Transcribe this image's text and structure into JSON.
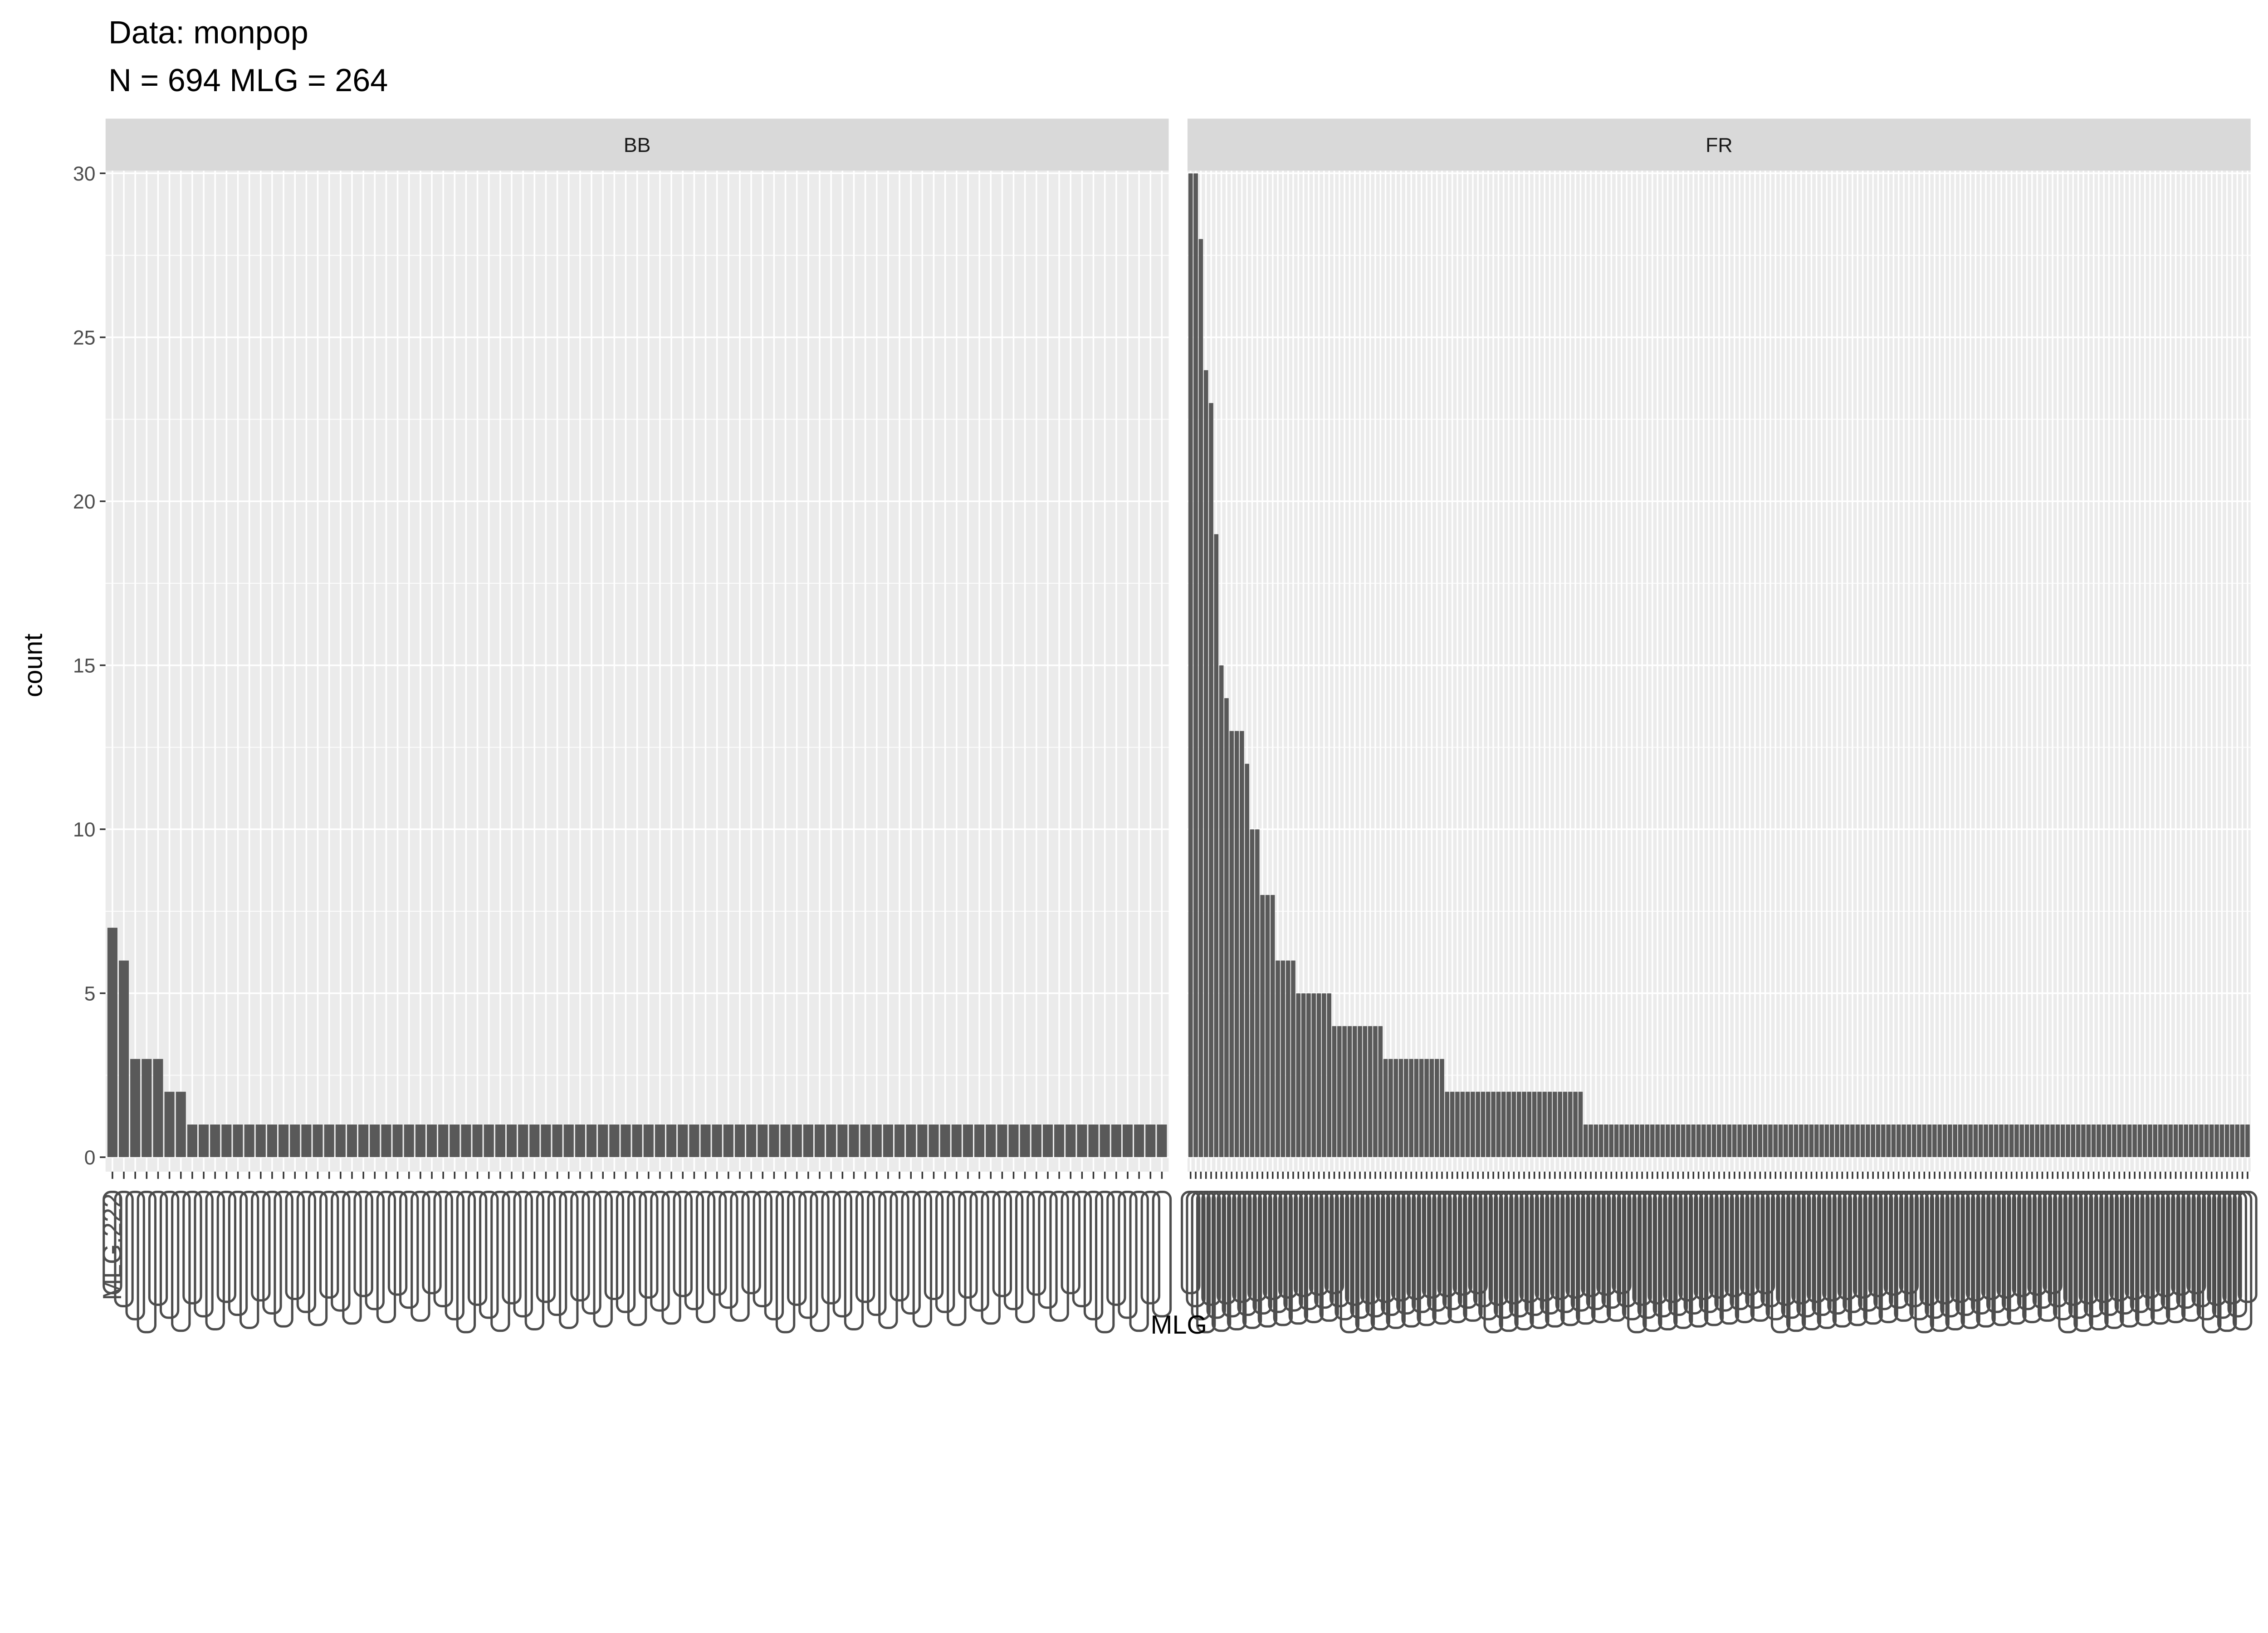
{
  "chart_data": {
    "type": "bar",
    "title": "Data: monpop",
    "subtitle": "N = 694 MLG = 264",
    "xlabel": "MLG",
    "ylabel": "count",
    "ylim": [
      0,
      30
    ],
    "yticks": [
      0,
      5,
      10,
      15,
      20,
      25,
      30
    ],
    "ytick_labels": [
      "0",
      "5",
      "10",
      "15",
      "20",
      "25",
      "30"
    ],
    "grid": true,
    "bar_color": "#595959",
    "panel_bg": "#ebebeb",
    "strip_bg": "#d9d9d9",
    "first_tick_label": "MLG.222",
    "panels": [
      {
        "name": "BB",
        "values": [
          7,
          6,
          3,
          3,
          3,
          2,
          2,
          1,
          1,
          1,
          1,
          1,
          1,
          1,
          1,
          1,
          1,
          1,
          1,
          1,
          1,
          1,
          1,
          1,
          1,
          1,
          1,
          1,
          1,
          1,
          1,
          1,
          1,
          1,
          1,
          1,
          1,
          1,
          1,
          1,
          1,
          1,
          1,
          1,
          1,
          1,
          1,
          1,
          1,
          1,
          1,
          1,
          1,
          1,
          1,
          1,
          1,
          1,
          1,
          1,
          1,
          1,
          1,
          1,
          1,
          1,
          1,
          1,
          1,
          1,
          1,
          1,
          1,
          1,
          1,
          1,
          1,
          1,
          1,
          1,
          1,
          1,
          1,
          1,
          1,
          1,
          1,
          1,
          1,
          1,
          1,
          1,
          1
        ]
      },
      {
        "name": "FR",
        "values": [
          30,
          30,
          28,
          24,
          23,
          19,
          15,
          14,
          13,
          13,
          13,
          12,
          10,
          10,
          8,
          8,
          8,
          6,
          6,
          6,
          6,
          5,
          5,
          5,
          5,
          5,
          5,
          5,
          4,
          4,
          4,
          4,
          4,
          4,
          4,
          4,
          4,
          4,
          3,
          3,
          3,
          3,
          3,
          3,
          3,
          3,
          3,
          3,
          3,
          3,
          2,
          2,
          2,
          2,
          2,
          2,
          2,
          2,
          2,
          2,
          2,
          2,
          2,
          2,
          2,
          2,
          2,
          2,
          2,
          2,
          2,
          2,
          2,
          2,
          2,
          2,
          2,
          1,
          1,
          1,
          1,
          1,
          1,
          1,
          1,
          1,
          1,
          1,
          1,
          1,
          1,
          1,
          1,
          1,
          1,
          1,
          1,
          1,
          1,
          1,
          1,
          1,
          1,
          1,
          1,
          1,
          1,
          1,
          1,
          1,
          1,
          1,
          1,
          1,
          1,
          1,
          1,
          1,
          1,
          1,
          1,
          1,
          1,
          1,
          1,
          1,
          1,
          1,
          1,
          1,
          1,
          1,
          1,
          1,
          1,
          1,
          1,
          1,
          1,
          1,
          1,
          1,
          1,
          1,
          1,
          1,
          1,
          1,
          1,
          1,
          1,
          1,
          1,
          1,
          1,
          1,
          1,
          1,
          1,
          1,
          1,
          1,
          1,
          1,
          1,
          1,
          1,
          1,
          1,
          1,
          1,
          1,
          1,
          1,
          1,
          1,
          1,
          1,
          1,
          1,
          1,
          1,
          1,
          1,
          1,
          1,
          1,
          1,
          1,
          1,
          1,
          1,
          1,
          1,
          1,
          1,
          1,
          1,
          1,
          1,
          1,
          1,
          1,
          1,
          1,
          1,
          1
        ]
      }
    ]
  }
}
